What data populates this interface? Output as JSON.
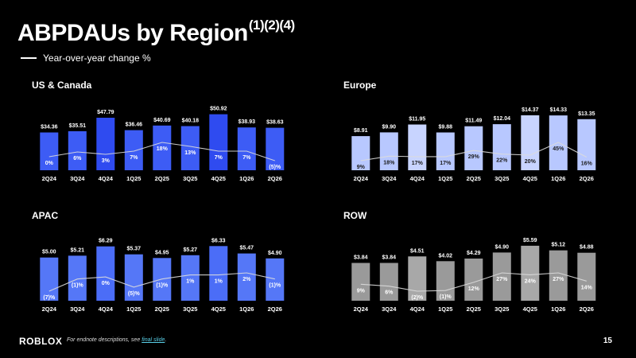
{
  "title": "ABPDAUs by Region",
  "title_notes": "(1)(2)(4)",
  "legend": {
    "line_label": "Year-over-year change %"
  },
  "footer": {
    "logo": "ROBLOX",
    "note_prefix": "For endnote descriptions, see",
    "note_link": "final slide",
    "note_suffix": ".",
    "page": "15"
  },
  "chart_data": [
    {
      "type": "bar",
      "title": "US & Canada",
      "categories": [
        "2Q24",
        "3Q24",
        "4Q24",
        "1Q25",
        "2Q25",
        "3Q25",
        "4Q25",
        "1Q26",
        "2Q26"
      ],
      "values": [
        34.36,
        35.51,
        47.79,
        36.46,
        40.69,
        40.18,
        50.92,
        38.93,
        38.63
      ],
      "value_labels": [
        "$34.36",
        "$35.51",
        "$47.79",
        "$36.46",
        "$40.69",
        "$40.18",
        "$50.92",
        "$38.93",
        "$38.63"
      ],
      "yoy_values": [
        0,
        6,
        3,
        7,
        18,
        13,
        7,
        7,
        -5
      ],
      "yoy_labels": [
        "0%",
        "6%",
        "3%",
        "7%",
        "18%",
        "13%",
        "7%",
        "7%",
        "(5)%"
      ],
      "ylim": [
        0,
        55
      ],
      "bar_color": "#3d5cf5",
      "highlight_color": "#2f4bf0"
    },
    {
      "type": "bar",
      "title": "Europe",
      "categories": [
        "2Q24",
        "3Q24",
        "4Q24",
        "1Q25",
        "2Q25",
        "3Q25",
        "4Q25",
        "1Q26",
        "2Q26"
      ],
      "values": [
        8.91,
        9.9,
        11.95,
        9.88,
        11.49,
        12.04,
        14.37,
        14.33,
        13.35
      ],
      "value_labels": [
        "$8.91",
        "$9.90",
        "$11.95",
        "$9.88",
        "$11.49",
        "$12.04",
        "$14.37",
        "$14.33",
        "$13.35"
      ],
      "yoy_values": [
        9,
        18,
        17,
        17,
        29,
        22,
        20,
        45,
        16
      ],
      "yoy_labels": [
        "9%",
        "18%",
        "17%",
        "17%",
        "29%",
        "22%",
        "20%",
        "45%",
        "16%"
      ],
      "ylim": [
        0,
        15.8
      ],
      "bar_color": "#b8c8ff",
      "highlight_color": "#c8d4ff"
    },
    {
      "type": "bar",
      "title": "APAC",
      "categories": [
        "2Q24",
        "3Q24",
        "4Q24",
        "1Q25",
        "2Q25",
        "3Q25",
        "4Q25",
        "1Q26",
        "2Q26"
      ],
      "values": [
        5.0,
        5.21,
        6.29,
        5.37,
        4.95,
        5.27,
        6.33,
        5.47,
        4.9
      ],
      "value_labels": [
        "$5.00",
        "$5.21",
        "$6.29",
        "$5.37",
        "$4.95",
        "$5.27",
        "$6.33",
        "$5.47",
        "$4.90"
      ],
      "yoy_values": [
        -7,
        -1,
        0,
        -5,
        -1,
        1,
        1,
        2,
        -1
      ],
      "yoy_labels": [
        "(7)%",
        "(1)%",
        "0%",
        "(5)%",
        "(1)%",
        "1%",
        "1%",
        "2%",
        "(1)%"
      ],
      "ylim": [
        0,
        7
      ],
      "bar_color": "#5577f7",
      "highlight_color": "#4b6df7"
    },
    {
      "type": "bar",
      "title": "ROW",
      "categories": [
        "2Q24",
        "3Q24",
        "4Q24",
        "1Q25",
        "2Q25",
        "3Q25",
        "4Q25",
        "1Q26",
        "2Q26"
      ],
      "values": [
        3.84,
        3.84,
        4.51,
        4.02,
        4.29,
        4.9,
        5.59,
        5.12,
        4.88
      ],
      "value_labels": [
        "$3.84",
        "$3.84",
        "$4.51",
        "$4.02",
        "$4.29",
        "$4.90",
        "$5.59",
        "$5.12",
        "$4.88"
      ],
      "yoy_values": [
        9,
        6,
        -2,
        -1,
        12,
        27,
        24,
        27,
        14
      ],
      "yoy_labels": [
        "9%",
        "6%",
        "(2)%",
        "(1)%",
        "12%",
        "27%",
        "24%",
        "27%",
        "14%"
      ],
      "ylim": [
        0,
        6.15
      ],
      "bar_color": "#9a9a9a",
      "highlight_color": "#a8a8a8"
    }
  ]
}
